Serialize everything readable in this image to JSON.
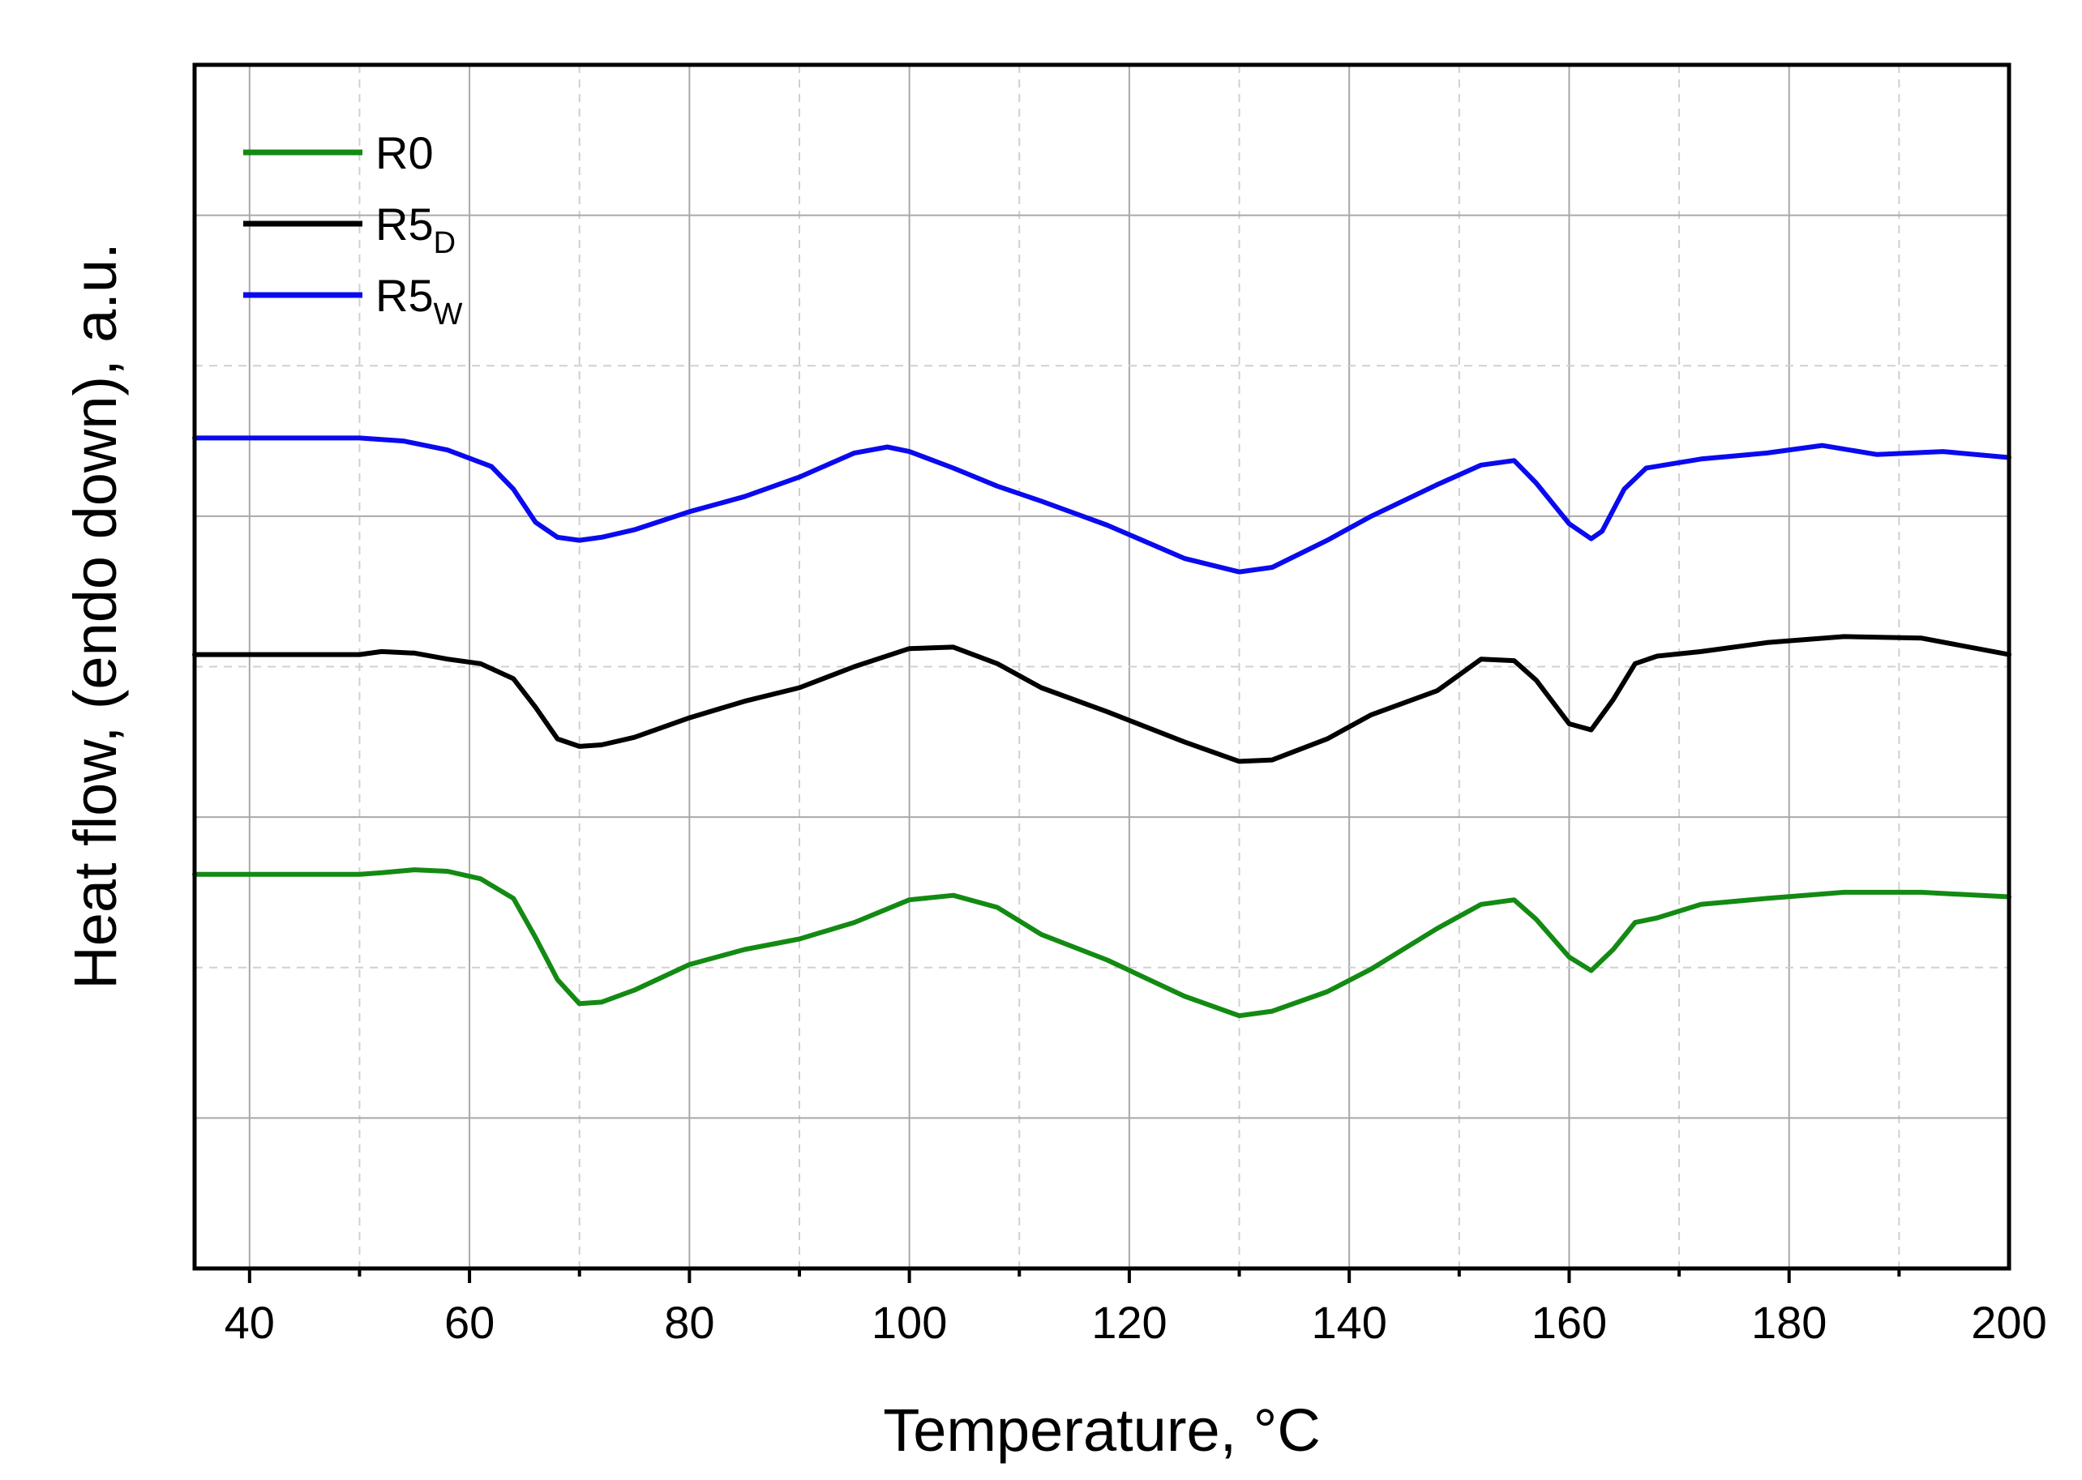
{
  "chart_data": {
    "type": "line",
    "title": "",
    "xlabel": "Temperature, °C",
    "ylabel": "Heat flow, (endo down), a.u.",
    "xlim": [
      35,
      200
    ],
    "ylim": [
      0,
      8
    ],
    "xticks": [
      40,
      60,
      80,
      100,
      120,
      140,
      160,
      180,
      200
    ],
    "grid": true,
    "legend_position": "top-left",
    "series": [
      {
        "name": "R0",
        "name_main": "R0",
        "name_sub": "",
        "color": "#138a13",
        "x": [
          35,
          50,
          52,
          55,
          58,
          61,
          64,
          66,
          68,
          70,
          72,
          75,
          80,
          85,
          90,
          95,
          100,
          104,
          108,
          112,
          118,
          125,
          130,
          133,
          138,
          142,
          148,
          152,
          155,
          157,
          160,
          162,
          164,
          166,
          168,
          172,
          178,
          185,
          192,
          200
        ],
        "y": [
          2.62,
          2.62,
          2.63,
          2.65,
          2.64,
          2.59,
          2.46,
          2.2,
          1.92,
          1.76,
          1.77,
          1.85,
          2.02,
          2.12,
          2.19,
          2.3,
          2.45,
          2.48,
          2.4,
          2.22,
          2.05,
          1.81,
          1.68,
          1.71,
          1.84,
          1.99,
          2.26,
          2.42,
          2.45,
          2.32,
          2.07,
          1.98,
          2.12,
          2.3,
          2.33,
          2.42,
          2.46,
          2.5,
          2.5,
          2.47
        ]
      },
      {
        "name": "R5_D",
        "name_main": "R5",
        "name_sub": "D",
        "color": "#000000",
        "x": [
          35,
          50,
          52,
          55,
          58,
          61,
          64,
          66,
          68,
          70,
          72,
          75,
          80,
          85,
          90,
          95,
          100,
          104,
          108,
          112,
          118,
          125,
          130,
          133,
          138,
          142,
          148,
          152,
          155,
          157,
          160,
          162,
          164,
          166,
          168,
          172,
          178,
          185,
          192,
          200
        ],
        "y": [
          4.08,
          4.08,
          4.1,
          4.09,
          4.05,
          4.02,
          3.92,
          3.73,
          3.52,
          3.47,
          3.48,
          3.53,
          3.66,
          3.77,
          3.86,
          4.0,
          4.12,
          4.13,
          4.02,
          3.86,
          3.7,
          3.5,
          3.37,
          3.38,
          3.52,
          3.68,
          3.84,
          4.05,
          4.04,
          3.91,
          3.62,
          3.58,
          3.78,
          4.02,
          4.07,
          4.1,
          4.16,
          4.2,
          4.19,
          4.08
        ]
      },
      {
        "name": "R5_W",
        "name_main": "R5",
        "name_sub": "W",
        "color": "#0a0aef",
        "x": [
          35,
          50,
          54,
          58,
          62,
          64,
          66,
          68,
          70,
          72,
          75,
          80,
          85,
          90,
          95,
          98,
          100,
          104,
          108,
          112,
          118,
          125,
          130,
          133,
          138,
          142,
          148,
          152,
          155,
          157,
          160,
          162,
          163,
          165,
          167,
          172,
          178,
          183,
          188,
          194,
          200
        ],
        "y": [
          5.52,
          5.52,
          5.5,
          5.44,
          5.33,
          5.18,
          4.96,
          4.86,
          4.84,
          4.86,
          4.91,
          5.03,
          5.13,
          5.26,
          5.42,
          5.46,
          5.43,
          5.32,
          5.2,
          5.1,
          4.94,
          4.72,
          4.63,
          4.66,
          4.84,
          5.0,
          5.21,
          5.34,
          5.37,
          5.22,
          4.95,
          4.85,
          4.9,
          5.18,
          5.32,
          5.38,
          5.42,
          5.47,
          5.41,
          5.43,
          5.39
        ]
      }
    ]
  }
}
